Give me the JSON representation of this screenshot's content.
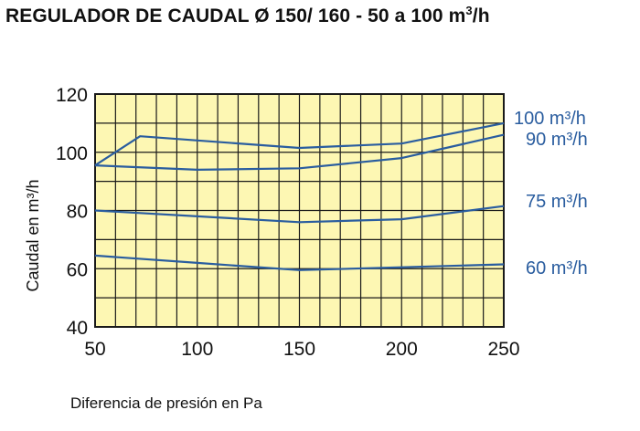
{
  "title": {
    "main": "REGULADOR DE CAUDAL Ø 150/ 160 - 50 a 100 m",
    "sup": "3",
    "tail": "/h"
  },
  "colors": {
    "plot_bg": "#fdf7b3",
    "grid": "#1a1a1a",
    "series": "#2a5d9f",
    "series_label": "#2a5d9f",
    "text": "#111111"
  },
  "chart_data": {
    "type": "line",
    "xlabel": "Diferencia de presión en Pa",
    "ylabel": "Caudal en m³/h",
    "xlim": [
      50,
      250
    ],
    "ylim": [
      40,
      120
    ],
    "xticks": [
      50,
      100,
      150,
      200,
      250
    ],
    "yticks": [
      40,
      60,
      80,
      100,
      120
    ],
    "grid": true,
    "series": [
      {
        "name": "100 m³/h",
        "x": [
          50,
          72,
          150,
          200,
          250
        ],
        "y": [
          95.5,
          105.5,
          101.5,
          103,
          110
        ]
      },
      {
        "name": "90 m³/h",
        "x": [
          50,
          100,
          150,
          200,
          250
        ],
        "y": [
          95.5,
          94,
          94.5,
          98,
          106
        ]
      },
      {
        "name": "75 m³/h",
        "x": [
          50,
          100,
          150,
          200,
          250
        ],
        "y": [
          80,
          78,
          76,
          77,
          81.5
        ]
      },
      {
        "name": "60 m³/h",
        "x": [
          50,
          100,
          150,
          200,
          250
        ],
        "y": [
          64.5,
          62,
          59.5,
          60.5,
          61.5
        ]
      }
    ]
  }
}
